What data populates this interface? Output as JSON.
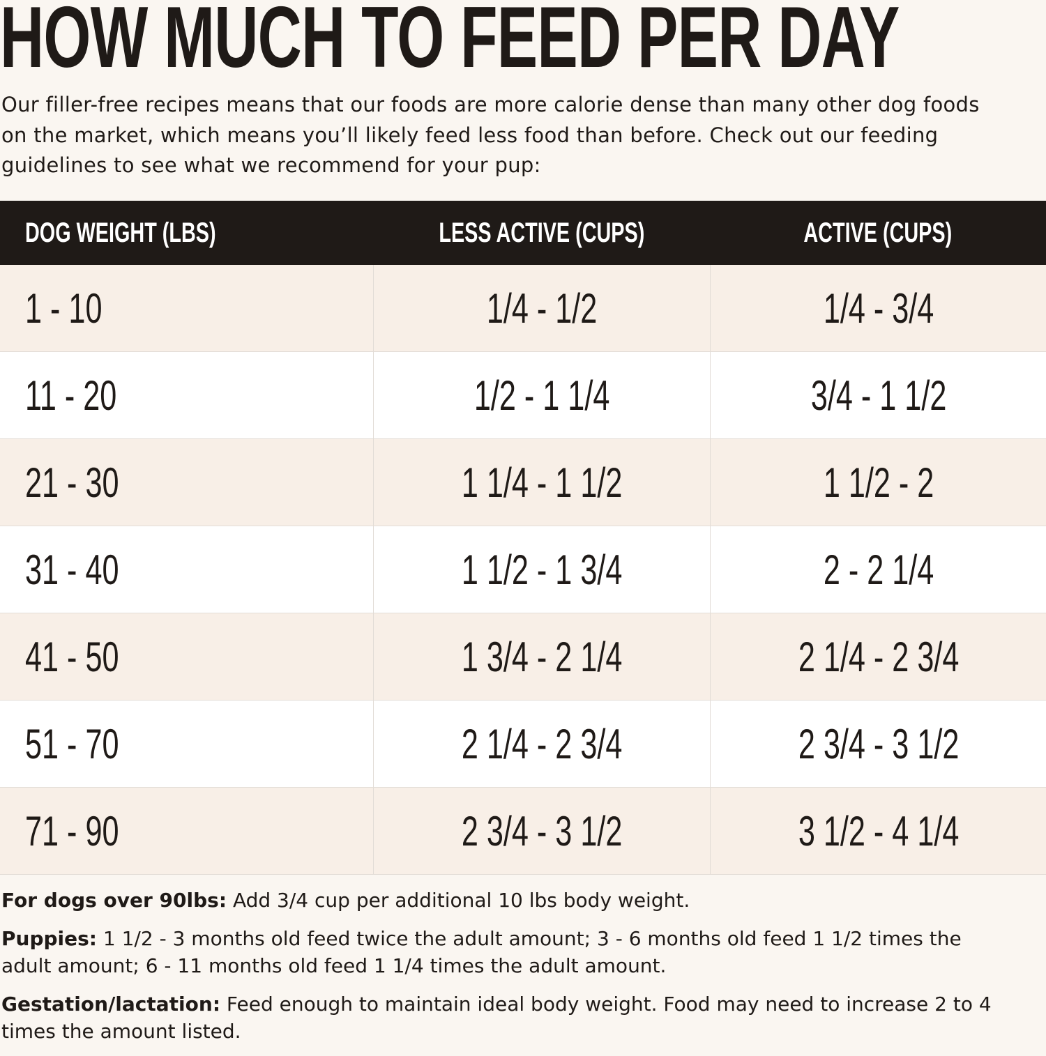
{
  "header": {
    "title": "HOW MUCH TO FEED PER DAY",
    "intro": "Our filler-free recipes means that our foods are more calorie dense than many other dog foods on the market, which means you’ll likely feed less food than before. Check out our feeding guidelines to see what we recommend for your pup:"
  },
  "table": {
    "columns": [
      "DOG WEIGHT (LBS)",
      "LESS ACTIVE (CUPS)",
      "ACTIVE (CUPS)"
    ],
    "rows": [
      [
        "1 - 10",
        "1/4 - 1/2",
        "1/4 - 3/4"
      ],
      [
        "11 - 20",
        "1/2 - 1 1/4",
        "3/4 - 1 1/2"
      ],
      [
        "21 - 30",
        "1 1/4 - 1 1/2",
        "1 1/2 - 2"
      ],
      [
        "31 - 40",
        "1 1/2 - 1 3/4",
        "2 - 2 1/4"
      ],
      [
        "41 - 50",
        "1 3/4 - 2 1/4",
        "2 1/4 - 2 3/4"
      ],
      [
        "51 - 70",
        "2 1/4 - 2 3/4",
        "2 3/4 - 3 1/2"
      ],
      [
        "71 - 90",
        "2 3/4 - 3 1/2",
        "3 1/2 - 4 1/4"
      ]
    ]
  },
  "notes": [
    {
      "label": "For dogs over 90lbs:",
      "text": "Add 3/4 cup per additional 10 lbs body weight."
    },
    {
      "label": "Puppies:",
      "text": "1 1/2 - 3 months old feed twice the adult amount; 3 - 6 months old feed 1 1/2 times the adult amount; 6 - 11 months old feed 1 1/4 times the adult amount."
    },
    {
      "label": "Gestation/lactation:",
      "text": "Feed enough to maintain ideal body weight. Food may need to increase 2 to 4 times the amount listed."
    }
  ]
}
